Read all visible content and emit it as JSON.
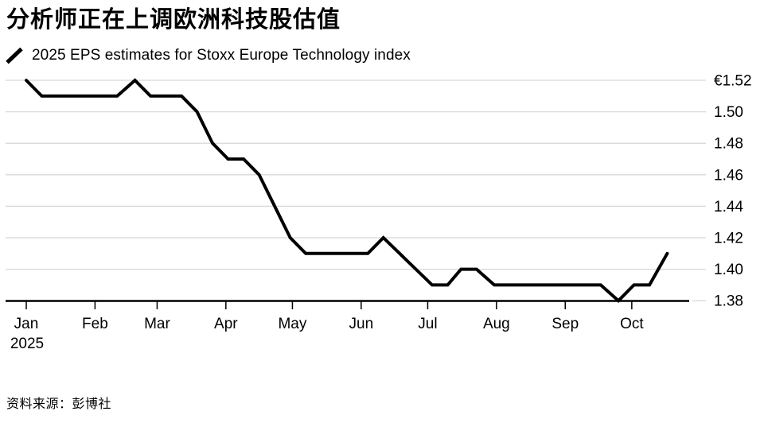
{
  "title": "分析师正在上调欧洲科技股估值",
  "legend": {
    "series_label": "2025 EPS estimates for Stoxx Europe Technology index"
  },
  "source_note": "资料来源：彭博社",
  "colors": {
    "line": "#000000",
    "grid": "#d8d8d8",
    "axis": "#000000",
    "text": "#000000"
  },
  "chart_data": {
    "type": "line",
    "title": "分析师正在上调欧洲科技股估值",
    "series_name": "2025 EPS estimates for Stoxx Europe Technology index",
    "currency": "EUR",
    "grid": true,
    "legend_position": "top-left",
    "x_axis": {
      "unit": "day_offset_from_2025-01-01",
      "year_label": "2025",
      "months": [
        {
          "label": "Jan",
          "day": 0
        },
        {
          "label": "Feb",
          "day": 31
        },
        {
          "label": "Mar",
          "day": 59
        },
        {
          "label": "Apr",
          "day": 90
        },
        {
          "label": "May",
          "day": 120
        },
        {
          "label": "Jun",
          "day": 151
        },
        {
          "label": "Jul",
          "day": 181
        },
        {
          "label": "Aug",
          "day": 212
        },
        {
          "label": "Sep",
          "day": 243
        },
        {
          "label": "Oct",
          "day": 273
        }
      ]
    },
    "y_axis": {
      "min": 1.38,
      "max": 1.52,
      "ticks": [
        {
          "label": "€1.52",
          "value": 1.52
        },
        {
          "label": "1.50",
          "value": 1.5
        },
        {
          "label": "1.48",
          "value": 1.48
        },
        {
          "label": "1.46",
          "value": 1.46
        },
        {
          "label": "1.44",
          "value": 1.44
        },
        {
          "label": "1.42",
          "value": 1.42
        },
        {
          "label": "1.40",
          "value": 1.4
        },
        {
          "label": "1.38",
          "value": 1.38
        }
      ]
    },
    "points": [
      [
        0,
        1.52
      ],
      [
        7,
        1.51
      ],
      [
        41,
        1.51
      ],
      [
        49,
        1.52
      ],
      [
        56,
        1.51
      ],
      [
        70,
        1.51
      ],
      [
        77,
        1.5
      ],
      [
        84,
        1.48
      ],
      [
        91,
        1.47
      ],
      [
        98,
        1.47
      ],
      [
        105,
        1.46
      ],
      [
        119,
        1.42
      ],
      [
        126,
        1.41
      ],
      [
        154,
        1.41
      ],
      [
        161,
        1.42
      ],
      [
        183,
        1.39
      ],
      [
        190,
        1.39
      ],
      [
        196,
        1.4
      ],
      [
        203,
        1.4
      ],
      [
        211,
        1.39
      ],
      [
        259,
        1.39
      ],
      [
        267,
        1.38
      ],
      [
        274,
        1.39
      ],
      [
        281,
        1.39
      ],
      [
        289,
        1.41
      ]
    ]
  }
}
